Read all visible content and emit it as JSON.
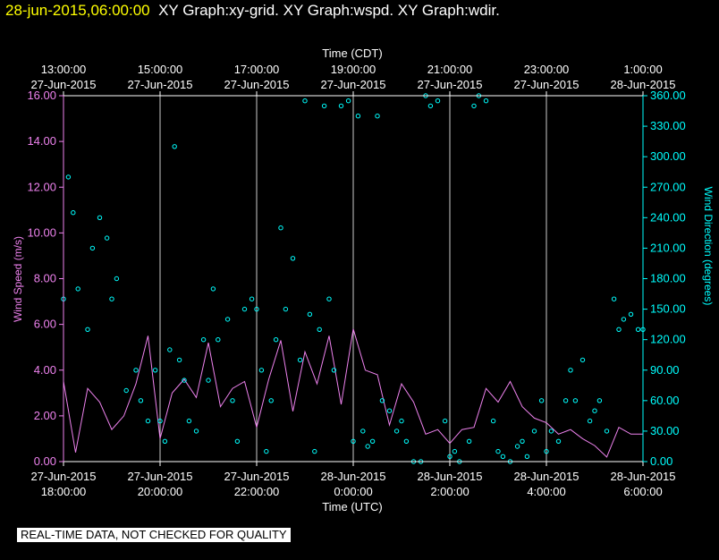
{
  "header": {
    "timestamp": "28-jun-2015,06:00:00",
    "title": "XY Graph:xy-grid.  XY Graph:wspd.  XY Graph:wdir."
  },
  "notice": "REAL-TIME DATA, NOT CHECKED FOR QUALITY",
  "colors": {
    "speed": "#ee82ee",
    "direction": "#00ffff",
    "axis": "#ffffff",
    "grid": "#ffffff",
    "timestamp": "#ffff00"
  },
  "chart_data": {
    "type": "line",
    "xlabel_top": "Time (CDT)",
    "xlabel_bottom": "Time (UTC)",
    "ylabel_left": "Wind Speed (m/s)",
    "ylabel_right": "Wind Direction (degrees)",
    "xlim": [
      "2015-06-27T18:00Z",
      "2015-06-28T06:00Z"
    ],
    "ylim_left": [
      0,
      16
    ],
    "ylim_right": [
      0,
      360
    ],
    "grid": true,
    "bottom_ticks": [
      {
        "l1": "27-Jun-2015",
        "l2": "18:00:00"
      },
      {
        "l1": "27-Jun-2015",
        "l2": "20:00:00"
      },
      {
        "l1": "27-Jun-2015",
        "l2": "22:00:00"
      },
      {
        "l1": "28-Jun-2015",
        "l2": "0:00:00"
      },
      {
        "l1": "28-Jun-2015",
        "l2": "2:00:00"
      },
      {
        "l1": "28-Jun-2015",
        "l2": "4:00:00"
      },
      {
        "l1": "28-Jun-2015",
        "l2": "6:00:00"
      }
    ],
    "top_ticks": [
      {
        "l1": "13:00:00",
        "l2": "27-Jun-2015"
      },
      {
        "l1": "15:00:00",
        "l2": "27-Jun-2015"
      },
      {
        "l1": "17:00:00",
        "l2": "27-Jun-2015"
      },
      {
        "l1": "19:00:00",
        "l2": "27-Jun-2015"
      },
      {
        "l1": "21:00:00",
        "l2": "27-Jun-2015"
      },
      {
        "l1": "23:00:00",
        "l2": "27-Jun-2015"
      },
      {
        "l1": "1:00:00",
        "l2": "28-Jun-2015"
      }
    ],
    "left_ticks": [
      "0.00",
      "2.00",
      "4.00",
      "6.00",
      "8.00",
      "10.00",
      "12.00",
      "14.00",
      "16.00"
    ],
    "right_ticks": [
      "0.00",
      "30.00",
      "60.00",
      "90.00",
      "120.00",
      "150.00",
      "180.00",
      "210.00",
      "240.00",
      "270.00",
      "300.00",
      "330.00",
      "360.00"
    ],
    "series": [
      {
        "name": "wspd",
        "style": "line",
        "x_hours": [
          0,
          0.25,
          0.5,
          0.75,
          1,
          1.25,
          1.5,
          1.75,
          2,
          2.25,
          2.5,
          2.75,
          3,
          3.25,
          3.5,
          3.75,
          4,
          4.25,
          4.5,
          4.75,
          5,
          5.25,
          5.5,
          5.75,
          6,
          6.25,
          6.5,
          6.75,
          7,
          7.25,
          7.5,
          7.75,
          8,
          8.25,
          8.5,
          8.75,
          9,
          9.25,
          9.5,
          9.75,
          10,
          10.25,
          10.5,
          10.75,
          11,
          11.25,
          11.5,
          11.75,
          12
        ],
        "values": [
          3.5,
          0.4,
          3.2,
          2.6,
          1.4,
          2.0,
          3.4,
          5.5,
          1.0,
          3.0,
          3.6,
          2.8,
          5.2,
          2.4,
          3.2,
          3.5,
          1.5,
          3.6,
          5.3,
          2.2,
          4.8,
          3.4,
          5.5,
          2.5,
          5.8,
          4.0,
          3.8,
          1.6,
          3.4,
          2.6,
          1.2,
          1.4,
          0.8,
          1.4,
          1.5,
          3.2,
          2.6,
          3.5,
          2.4,
          1.9,
          1.7,
          1.2,
          1.4,
          1.0,
          0.7,
          0.2,
          1.5,
          1.2,
          1.2
        ]
      },
      {
        "name": "wdir",
        "style": "scatter",
        "x_hours": [
          0,
          0.1,
          0.2,
          0.3,
          0.5,
          0.6,
          0.75,
          0.9,
          1,
          1.1,
          1.3,
          1.5,
          1.6,
          1.75,
          1.9,
          2.0,
          2.1,
          2.2,
          2.3,
          2.4,
          2.5,
          2.6,
          2.75,
          2.9,
          3.0,
          3.1,
          3.2,
          3.4,
          3.5,
          3.6,
          3.75,
          3.9,
          4.0,
          4.1,
          4.2,
          4.3,
          4.4,
          4.5,
          4.6,
          4.75,
          4.9,
          5.0,
          5.1,
          5.2,
          5.3,
          5.4,
          5.5,
          5.6,
          5.75,
          5.9,
          6.0,
          6.1,
          6.2,
          6.3,
          6.4,
          6.5,
          6.6,
          6.75,
          6.9,
          7.0,
          7.1,
          7.25,
          7.4,
          7.5,
          7.6,
          7.75,
          7.9,
          8.0,
          8.1,
          8.2,
          8.4,
          8.5,
          8.6,
          8.75,
          8.9,
          9.0,
          9.1,
          9.25,
          9.4,
          9.5,
          9.6,
          9.75,
          9.9,
          10.0,
          10.1,
          10.25,
          10.4,
          10.5,
          10.6,
          10.75,
          10.9,
          11.0,
          11.1,
          11.25,
          11.4,
          11.5,
          11.6,
          11.75,
          11.9,
          12.0
        ],
        "values": [
          160,
          280,
          245,
          170,
          130,
          210,
          240,
          220,
          160,
          180,
          70,
          90,
          60,
          40,
          90,
          40,
          20,
          110,
          310,
          100,
          80,
          40,
          30,
          120,
          80,
          170,
          120,
          140,
          60,
          20,
          150,
          160,
          150,
          90,
          10,
          60,
          120,
          230,
          150,
          200,
          100,
          355,
          145,
          10,
          130,
          350,
          160,
          90,
          350,
          355,
          20,
          340,
          30,
          15,
          20,
          340,
          60,
          50,
          30,
          40,
          20,
          0,
          0,
          360,
          350,
          355,
          40,
          5,
          10,
          0,
          20,
          350,
          360,
          355,
          40,
          10,
          5,
          0,
          15,
          20,
          5,
          30,
          60,
          10,
          30,
          20,
          60,
          90,
          60,
          100,
          40,
          50,
          60,
          30,
          160,
          130,
          140,
          145,
          130,
          130
        ]
      }
    ]
  }
}
